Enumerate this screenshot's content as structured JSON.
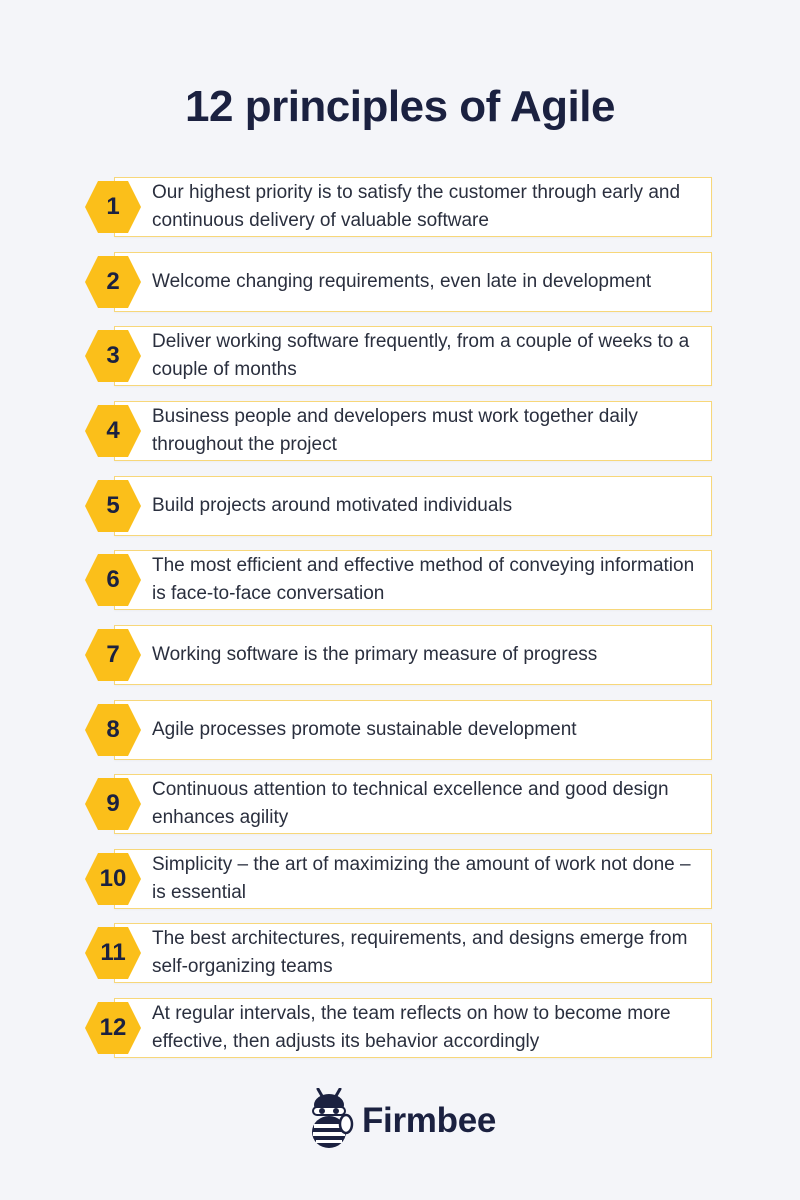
{
  "title": "12 principles of Agile",
  "principles": [
    {
      "number": "1",
      "text": "Our highest priority is to satisfy the customer through early and continuous delivery of valuable software"
    },
    {
      "number": "2",
      "text": "Welcome changing requirements, even late in development"
    },
    {
      "number": "3",
      "text": "Deliver working software frequently, from a couple of weeks to a couple of months"
    },
    {
      "number": "4",
      "text": "Business people and developers must work together daily throughout the project"
    },
    {
      "number": "5",
      "text": "Build projects around motivated individuals"
    },
    {
      "number": "6",
      "text": "The most efficient and effective method of conveying information is face-to-face conversation"
    },
    {
      "number": "7",
      "text": "Working software is the primary measure of progress"
    },
    {
      "number": "8",
      "text": "Agile processes promote sustainable development"
    },
    {
      "number": "9",
      "text": "Continuous attention to technical excellence and good design enhances agility"
    },
    {
      "number": "10",
      "text": "Simplicity – the art of maximizing the amount of work not done – is essential"
    },
    {
      "number": "11",
      "text": "The best architectures, requirements, and designs emerge from self-organizing teams"
    },
    {
      "number": "12",
      "text": "At regular intervals, the team reflects on how to become more effective, then adjusts its behavior accordingly"
    }
  ],
  "brand": {
    "name": "Firmbee",
    "logo_icon": "bee-mascot-icon"
  },
  "colors": {
    "accent": "#fbbf1a",
    "card_border": "#f7d77a",
    "background": "#f4f5f9",
    "title": "#1b2140"
  }
}
